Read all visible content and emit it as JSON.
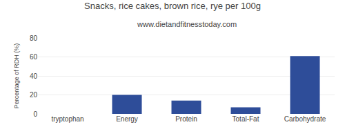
{
  "chart_data": {
    "type": "bar",
    "title": "Snacks, rice cakes, brown rice, rye per 100g",
    "subtitle": "www.dietandfitnesstoday.com",
    "categories": [
      "tryptophan",
      "Energy",
      "Protein",
      "Total-Fat",
      "Carbohydrate"
    ],
    "values": [
      0,
      20,
      14,
      7,
      61
    ],
    "color": "#2e4d99",
    "ylabel": "Percentage of RDH (%)",
    "ylim": [
      0,
      80
    ],
    "yticks": [
      0,
      20,
      40,
      60,
      80
    ],
    "grid": true
  }
}
